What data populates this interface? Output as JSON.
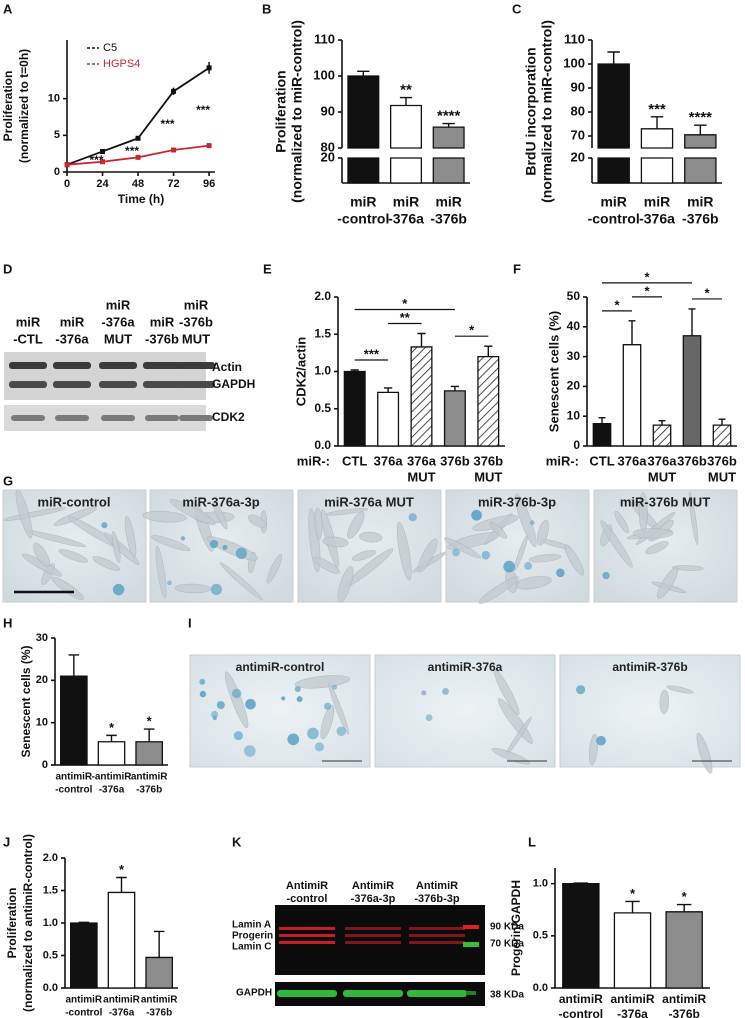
{
  "panel_labels": [
    "A",
    "B",
    "C",
    "D",
    "E",
    "F",
    "G",
    "H",
    "I",
    "J",
    "K",
    "L"
  ],
  "chart_data": [
    {
      "type": "line",
      "x": [
        0,
        24,
        48,
        72,
        96
      ],
      "xlim": [
        0,
        100
      ],
      "xticks": [
        0,
        24,
        48,
        72,
        96
      ],
      "ylim": [
        0,
        18
      ],
      "yticks": [
        0,
        5,
        10
      ],
      "x_label": "Time (h)",
      "y_label": [
        "Proliferation",
        "(normalized to t=0h)"
      ],
      "series": [
        {
          "name": "C5",
          "color": "#111111",
          "values": [
            1,
            2.8,
            4.6,
            11,
            14.2
          ],
          "errors": [
            0.05,
            0.15,
            0.3,
            0.5,
            0.8
          ]
        },
        {
          "name": "HGPS4",
          "color": "#c8282d",
          "values": [
            1,
            1.4,
            2,
            3,
            3.6
          ],
          "errors": [
            0.05,
            0.1,
            0.15,
            0.3,
            0.35
          ]
        }
      ],
      "stars": [
        null,
        "***",
        "***",
        "***",
        "***"
      ]
    },
    {
      "type": "bar",
      "categories": [
        [
          "miR",
          "-control"
        ],
        [
          "miR",
          "-376a"
        ],
        [
          "miR",
          "-376b"
        ]
      ],
      "values": [
        100,
        91.8,
        85.8
      ],
      "errors": [
        1.3,
        2.2,
        1
      ],
      "colors": [
        "#111111",
        "#ffffff",
        "#8c8c8c"
      ],
      "ylim": [
        0,
        110
      ],
      "ybreak": [
        20,
        80
      ],
      "yticks": [
        20,
        80,
        90,
        100,
        110
      ],
      "y_label": [
        "Proliferation",
        "(normalized to miR-control)"
      ],
      "stars": [
        null,
        "**",
        "****"
      ]
    },
    {
      "type": "bar",
      "categories": [
        [
          "miR",
          "-control"
        ],
        [
          "miR",
          "-376a"
        ],
        [
          "miR",
          "-376b"
        ]
      ],
      "values": [
        100,
        73,
        70.5
      ],
      "errors": [
        5,
        5,
        4
      ],
      "colors": [
        "#111111",
        "#ffffff",
        "#8c8c8c"
      ],
      "ylim": [
        0,
        110
      ],
      "ybreak": [
        20,
        65
      ],
      "yticks": [
        20,
        70,
        80,
        90,
        100,
        110
      ],
      "y_label": [
        "BrdU incorporation",
        "(normalized to miR-control)"
      ],
      "stars": [
        null,
        "***",
        "****"
      ]
    },
    {
      "type": "bar",
      "categories": [
        [
          "CTL"
        ],
        [
          "376a"
        ],
        [
          "376a",
          "MUT"
        ],
        [
          "376b"
        ],
        [
          "376b",
          "MUT"
        ]
      ],
      "category_prefix": "miR-:",
      "values": [
        1,
        0.72,
        1.33,
        0.74,
        1.2
      ],
      "errors": [
        0.02,
        0.06,
        0.18,
        0.06,
        0.14
      ],
      "colors": [
        "#111111",
        "#ffffff",
        "#ffffff",
        "#8c8c8c",
        "#ffffff"
      ],
      "hatched": [
        false,
        false,
        true,
        false,
        true
      ],
      "ylim": [
        0,
        2
      ],
      "yticks": [
        {
          "value": 0,
          "label": "0.0"
        },
        0.5,
        {
          "value": 1,
          "label": "1.0"
        },
        1.5,
        {
          "value": 2,
          "label": "2.0"
        }
      ],
      "y_label": [
        "CDK2/actin"
      ],
      "brackets": [
        {
          "between": [
            0,
            1
          ],
          "text": "***"
        },
        {
          "between": [
            1,
            2
          ],
          "text": "**"
        },
        {
          "between": [
            3,
            4
          ],
          "text": "*"
        },
        {
          "between": [
            0,
            3
          ],
          "text": "*"
        }
      ]
    },
    {
      "type": "bar",
      "categories": [
        [
          "CTL"
        ],
        [
          "376a"
        ],
        [
          "376a",
          "MUT"
        ],
        [
          "376b"
        ],
        [
          "376b",
          "MUT"
        ]
      ],
      "category_prefix": "miR-:",
      "values": [
        7.5,
        34,
        7,
        37,
        7
      ],
      "errors": [
        2,
        8,
        1.5,
        9,
        2
      ],
      "colors": [
        "#111111",
        "#ffffff",
        "#ffffff",
        "#666666",
        "#ffffff"
      ],
      "hatched": [
        false,
        false,
        true,
        false,
        true
      ],
      "ylim": [
        0,
        50
      ],
      "yticks": [
        0,
        10,
        20,
        30,
        40,
        50
      ],
      "y_label": [
        "Senescent cells (%)"
      ],
      "brackets": [
        {
          "between": [
            0,
            1
          ],
          "text": "*"
        },
        {
          "between": [
            1,
            2
          ],
          "text": "*"
        },
        {
          "between": [
            3,
            4
          ],
          "text": "*"
        },
        {
          "between": [
            0,
            3
          ],
          "text": "*"
        }
      ]
    },
    {
      "type": "bar",
      "categories": [
        [
          "antimiR",
          "-control"
        ],
        [
          "-antimiR",
          "-376a"
        ],
        [
          "antimiR",
          "-376b"
        ]
      ],
      "values": [
        21,
        5.5,
        5.5
      ],
      "errors": [
        5,
        1.5,
        3
      ],
      "colors": [
        "#111111",
        "#ffffff",
        "#8c8c8c"
      ],
      "ylim": [
        0,
        30
      ],
      "yticks": [
        0,
        10,
        20,
        30
      ],
      "y_label": [
        "Senescent cells (%)"
      ],
      "stars": [
        null,
        "*",
        "*"
      ]
    },
    {
      "type": "bar",
      "categories": [
        [
          "antimiR",
          "-control"
        ],
        [
          "antimiR",
          "-376a"
        ],
        [
          "antimiR",
          "-376b"
        ]
      ],
      "values": [
        1,
        1.47,
        0.47
      ],
      "errors": [
        0.01,
        0.23,
        0.4
      ],
      "colors": [
        "#111111",
        "#ffffff",
        "#8c8c8c"
      ],
      "ylim": [
        0,
        2
      ],
      "yticks": [
        {
          "value": 0,
          "label": "0.0"
        },
        0.5,
        {
          "value": 1,
          "label": "1.0"
        },
        1.5,
        {
          "value": 2,
          "label": "2.0"
        }
      ],
      "y_label": [
        "Proliferation",
        "(normalized to antimiR-control)"
      ],
      "stars": [
        null,
        "*",
        null
      ]
    },
    {
      "type": "bar",
      "categories": [
        [
          "antimiR",
          "-control"
        ],
        [
          "antimiR",
          "-376a"
        ],
        [
          "antimiR",
          "-376b"
        ]
      ],
      "values": [
        1,
        0.72,
        0.73
      ],
      "errors": [
        0.005,
        0.11,
        0.07
      ],
      "colors": [
        "#111111",
        "#ffffff",
        "#8c8c8c"
      ],
      "ylim": [
        0,
        1.15
      ],
      "yticks": [
        {
          "value": 0,
          "label": "0.0"
        },
        0.5,
        {
          "value": 1,
          "label": "1.0"
        }
      ],
      "y_label": [
        "Progerin/GAPDH"
      ],
      "stars": [
        null,
        "*",
        "*"
      ]
    }
  ],
  "blot_d": {
    "lanes": [
      [
        "miR",
        "-CTL"
      ],
      [
        "miR",
        "-376a"
      ],
      [
        "miR",
        "-376a",
        "MUT"
      ],
      [
        "miR",
        "-376b"
      ],
      [
        "miR",
        "-376b",
        "MUT"
      ]
    ],
    "bands": [
      "Actin",
      "GAPDH",
      "CDK2"
    ]
  },
  "images_g": {
    "labels": [
      "miR-control",
      "miR-376a-3p",
      "miR-376a MUT",
      "miR-376b-3p",
      "miR-376b MUT"
    ]
  },
  "images_i": {
    "labels": [
      "antimiR-control",
      "antimiR-376a",
      "antimiR-376b"
    ]
  },
  "blot_k": {
    "lanes": [
      [
        "AntimiR",
        "-control"
      ],
      [
        "AntimiR",
        "-376a-3p"
      ],
      [
        "AntimiR",
        "-376b-3p"
      ]
    ],
    "bands": [
      "Lamin A",
      "Progerin",
      "Lamin C",
      "GAPDH"
    ],
    "markers": [
      "90 KDa",
      "70 KDa",
      "38 KDa"
    ]
  }
}
